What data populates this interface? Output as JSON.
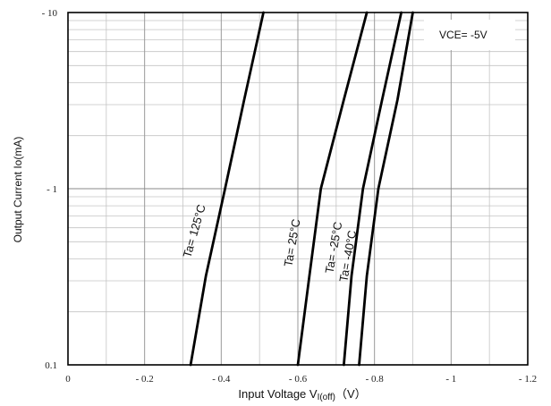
{
  "chart_data": {
    "type": "line",
    "x_scale": "linear",
    "y_scale": "log",
    "xlim": [
      0,
      -1.2
    ],
    "ylim": [
      0.1,
      10
    ],
    "xlabel_main": "Input Voltage  V",
    "xlabel_sub": "I(off)",
    "xlabel_unit": "（V）",
    "ylabel": "Output Current   Io(mA)",
    "x_ticks": [
      {
        "value": 0,
        "label": "0"
      },
      {
        "value": -0.2,
        "label": "- 0.2"
      },
      {
        "value": -0.4,
        "label": "- 0.4"
      },
      {
        "value": -0.6,
        "label": "- 0.6"
      },
      {
        "value": -0.8,
        "label": "- 0.8"
      },
      {
        "value": -1.0,
        "label": "- 1"
      },
      {
        "value": -1.2,
        "label": "- 1.2"
      }
    ],
    "y_ticks": [
      {
        "value": 0.1,
        "label": "0.1"
      },
      {
        "value": 1,
        "label": "- 1"
      },
      {
        "value": 10,
        "label": "- 10"
      }
    ],
    "grid": true,
    "legend_box": "VCE= -5V",
    "series": [
      {
        "name": "Ta= 125°C",
        "x": [
          -0.32,
          -0.36,
          -0.41,
          -0.46,
          -0.51
        ],
        "y": [
          0.1,
          0.32,
          1,
          3.2,
          10
        ]
      },
      {
        "name": "Ta= 25°C",
        "x": [
          -0.6,
          -0.63,
          -0.66,
          -0.72,
          -0.78
        ],
        "y": [
          0.1,
          0.32,
          1,
          3.2,
          10
        ]
      },
      {
        "name": "Ta= -25°C",
        "x": [
          -0.72,
          -0.74,
          -0.77,
          -0.82,
          -0.87
        ],
        "y": [
          0.1,
          0.32,
          1,
          3.2,
          10
        ]
      },
      {
        "name": "Ta= -40°C",
        "x": [
          -0.76,
          -0.78,
          -0.81,
          -0.86,
          -0.9
        ],
        "y": [
          0.1,
          0.32,
          1,
          3.2,
          10
        ]
      }
    ]
  }
}
